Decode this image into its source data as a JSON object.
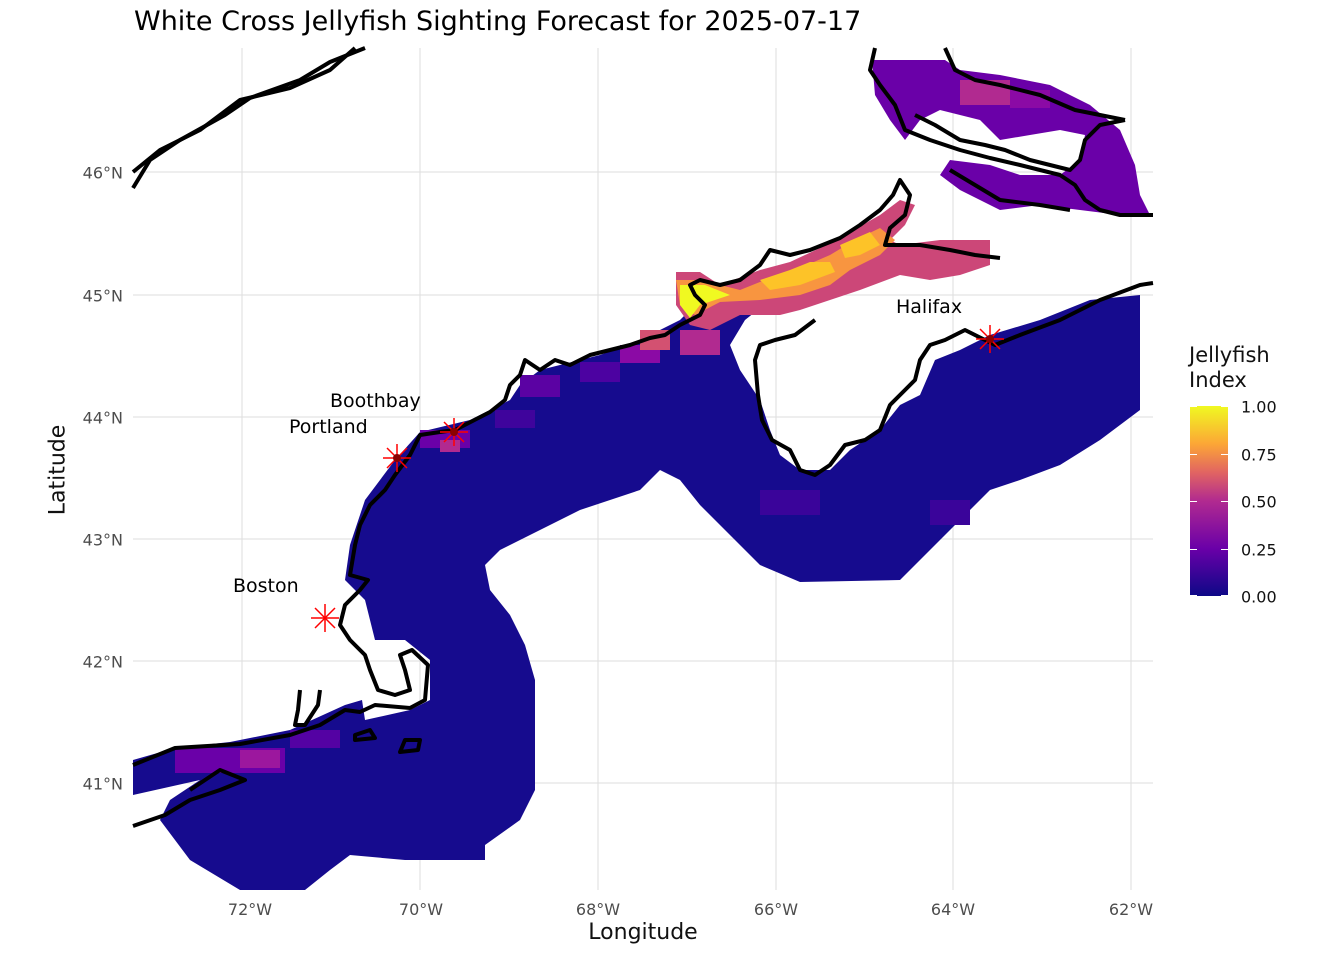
{
  "title": "White Cross Jellyfish Sighting Forecast for 2025-07-17",
  "xlabel": "Longitude",
  "ylabel": "Latitude",
  "x_ticks": [
    "72°W",
    "70°W",
    "68°W",
    "66°W",
    "64°W",
    "62°W"
  ],
  "y_ticks": [
    "46°N",
    "45°N",
    "44°N",
    "43°N",
    "42°N",
    "41°N"
  ],
  "legend": {
    "title_line1": "Jellyfish",
    "title_line2": "Index",
    "ticks": [
      "1.00",
      "0.75",
      "0.50",
      "0.25",
      "0.00"
    ]
  },
  "cities": [
    {
      "name": "Halifax",
      "lon": -63.57,
      "lat": 44.65
    },
    {
      "name": "Boothbay",
      "lon": -69.63,
      "lat": 43.85
    },
    {
      "name": "Portland",
      "lon": -70.26,
      "lat": 43.66
    },
    {
      "name": "Boston",
      "lon": -71.06,
      "lat": 42.36
    }
  ],
  "colors": {
    "low": "#0d0887",
    "mid": "#b12a90",
    "high": "#f0f921",
    "marker": "#ff0000",
    "coast": "#000000"
  },
  "map_extent": {
    "lon": [
      -73.3,
      -61.7
    ],
    "lat": [
      40.2,
      47.0
    ]
  }
}
